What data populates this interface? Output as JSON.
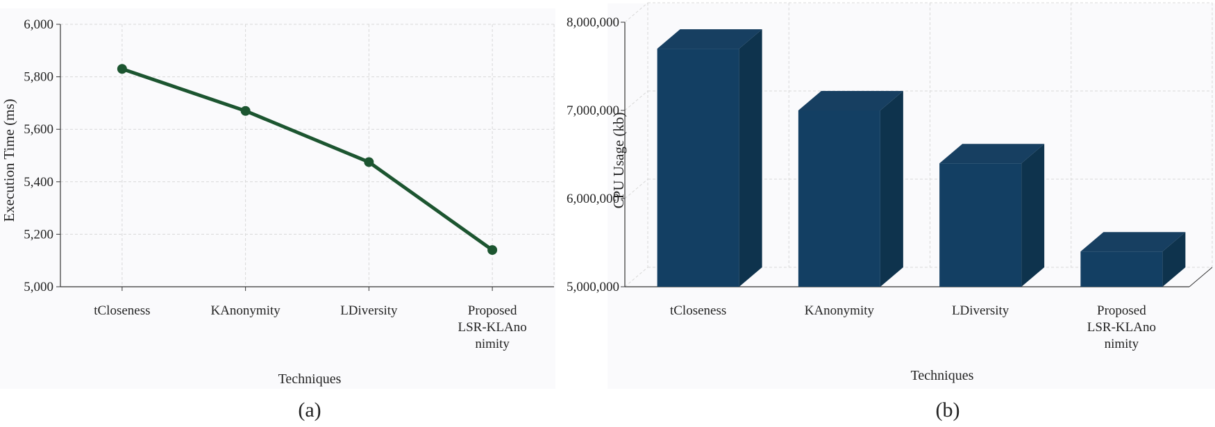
{
  "colors": {
    "panel_background": "#fafafc",
    "line": "#1c5530",
    "marker": "#1c5530",
    "bar_front": "#133f63",
    "bar_top": "#173f61",
    "bar_side": "#0e334d",
    "grid": "#d8d8d8",
    "text": "#222222"
  },
  "panel_captions": [
    "(a)",
    "(b)"
  ],
  "chart_data": [
    {
      "type": "line",
      "title": "",
      "categories": [
        "tCloseness",
        "KAnonymity",
        "LDiversity",
        "Proposed LSR-KLAnonimity"
      ],
      "tick_labels": [
        [
          "tCloseness"
        ],
        [
          "KAnonymity"
        ],
        [
          "LDiversity"
        ],
        [
          "Proposed",
          "LSR-KLAno",
          "nimity"
        ]
      ],
      "values": [
        5830,
        5670,
        5475,
        5140
      ],
      "xlabel": "Techniques",
      "ylabel": "Execution Time (ms)",
      "ylim": [
        5000,
        6000
      ],
      "yticks": [
        "5,000",
        "5,200",
        "5,400",
        "5,600",
        "5,800",
        "6,000"
      ],
      "ytick_values": [
        5000,
        5200,
        5400,
        5600,
        5800,
        6000
      ],
      "grid": true,
      "legend": "none"
    },
    {
      "type": "bar",
      "style": "3d",
      "title": "",
      "categories": [
        "tCloseness",
        "KAnonymity",
        "LDiversity",
        "Proposed LSR-KLAnonimity"
      ],
      "tick_labels": [
        [
          "tCloseness"
        ],
        [
          "KAnonymity"
        ],
        [
          "LDiversity"
        ],
        [
          "Proposed",
          "LSR-KLAno",
          "nimity"
        ]
      ],
      "values": [
        7700000,
        7000000,
        6400000,
        5400000
      ],
      "xlabel": "Techniques",
      "ylabel": "CPU Usage (kb)",
      "ylim": [
        5000000,
        8000000
      ],
      "yticks": [
        "5,000,000",
        "6,000,000",
        "7,000,000",
        "8,000,000"
      ],
      "ytick_values": [
        5000000,
        6000000,
        7000000,
        8000000
      ],
      "grid": true,
      "legend": "none"
    }
  ]
}
